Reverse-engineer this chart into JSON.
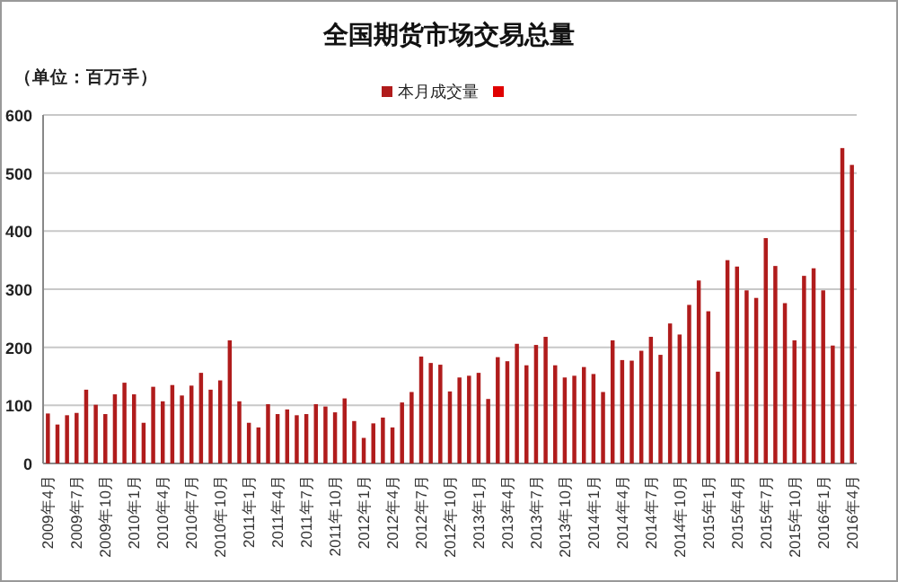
{
  "chart_data": {
    "type": "bar",
    "title": "全国期货市场交易总量",
    "ylabel": "（单位：百万手）",
    "categories": [
      "2009年4月",
      null,
      null,
      "2009年7月",
      null,
      null,
      "2009年10月",
      null,
      null,
      "2010年1月",
      null,
      null,
      "2010年4月",
      null,
      null,
      "2010年7月",
      null,
      null,
      "2010年10月",
      null,
      null,
      "2011年1月",
      null,
      null,
      "2011年4月",
      null,
      null,
      "2011年7月",
      null,
      null,
      "2011年10月",
      null,
      null,
      "2012年1月",
      null,
      null,
      "2012年4月",
      null,
      null,
      "2012年7月",
      null,
      null,
      "2012年10月",
      null,
      null,
      "2013年1月",
      null,
      null,
      "2013年4月",
      null,
      null,
      "2013年7月",
      null,
      null,
      "2013年10月",
      null,
      null,
      "2014年1月",
      null,
      null,
      "2014年4月",
      null,
      null,
      "2014年7月",
      null,
      null,
      "2014年10月",
      null,
      null,
      "2015年1月",
      null,
      null,
      "2015年4月",
      null,
      null,
      "2015年7月",
      null,
      null,
      "2015年10月",
      null,
      null,
      "2016年1月",
      null,
      null,
      "2016年4月"
    ],
    "series": [
      {
        "name": "本月成交量",
        "color": "#b01c1c",
        "values": [
          86,
          67,
          83,
          87,
          127,
          101,
          85,
          119,
          139,
          119,
          70,
          132,
          107,
          135,
          117,
          134,
          156,
          127,
          143,
          212,
          107,
          70,
          62,
          102,
          85,
          93,
          83,
          85,
          102,
          98,
          88,
          112,
          73,
          44,
          69,
          79,
          62,
          105,
          123,
          184,
          173,
          170,
          124,
          148,
          151,
          156,
          111,
          183,
          176,
          206,
          169,
          204,
          218,
          169,
          148,
          151,
          166,
          154,
          123,
          212,
          178,
          177,
          194,
          218,
          187,
          241,
          222,
          273,
          315,
          262,
          158,
          350,
          339,
          298,
          285,
          388,
          340,
          276,
          212,
          323,
          336,
          298,
          203,
          543,
          514
        ]
      },
      {
        "color": "#e00000",
        "values": [
          null,
          null,
          null,
          null,
          null,
          null,
          null,
          null,
          null,
          null,
          null,
          null,
          null,
          null,
          null,
          null,
          null,
          null,
          null,
          null,
          null,
          null,
          null,
          null,
          null,
          null,
          null,
          null,
          null,
          null,
          null,
          null,
          null,
          null,
          null,
          null,
          null,
          null,
          null,
          null,
          null,
          null,
          null,
          null,
          null,
          null,
          null,
          null,
          null,
          null,
          null,
          null,
          null,
          null,
          null,
          null,
          null,
          null,
          null,
          null,
          null,
          null,
          null,
          null,
          null,
          null,
          null,
          null,
          null,
          null,
          null,
          null,
          null,
          null,
          null,
          null,
          null,
          null,
          null,
          null,
          null,
          null,
          null,
          null,
          null
        ]
      }
    ],
    "ylim": [
      0,
      600
    ],
    "yticks": [
      0,
      100,
      200,
      300,
      400,
      500,
      600
    ],
    "grid": "y",
    "legend": "top"
  }
}
